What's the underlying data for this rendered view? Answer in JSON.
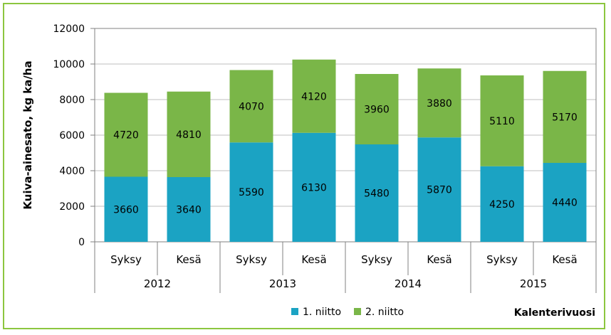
{
  "chart_data": {
    "type": "bar",
    "stacked": true,
    "title": "",
    "ylabel": "Kuiva-ainesato, kg ka/ha",
    "xlabel": "Kalenterivuosi",
    "ylim": [
      0,
      12000
    ],
    "yticks": [
      "0",
      "2000",
      "4000",
      "6000",
      "8000",
      "10000",
      "12000"
    ],
    "ytick_values": [
      0,
      2000,
      4000,
      6000,
      8000,
      10000,
      12000
    ],
    "categories": [
      "Syksy",
      "Kesä",
      "Syksy",
      "Kesä",
      "Syksy",
      "Kesä",
      "Syksy",
      "Kesä"
    ],
    "groups": [
      "2012",
      "2013",
      "2014",
      "2015"
    ],
    "series": [
      {
        "name": "1. niitto",
        "color": "#1ba3c3",
        "values": [
          3660,
          3640,
          5590,
          6130,
          5480,
          5870,
          4250,
          4440
        ]
      },
      {
        "name": "2. niitto",
        "color": "#7ab648",
        "values": [
          4720,
          4810,
          4070,
          4120,
          3960,
          3880,
          5110,
          5170
        ]
      }
    ],
    "grid": true,
    "legend_position": "bottom"
  }
}
